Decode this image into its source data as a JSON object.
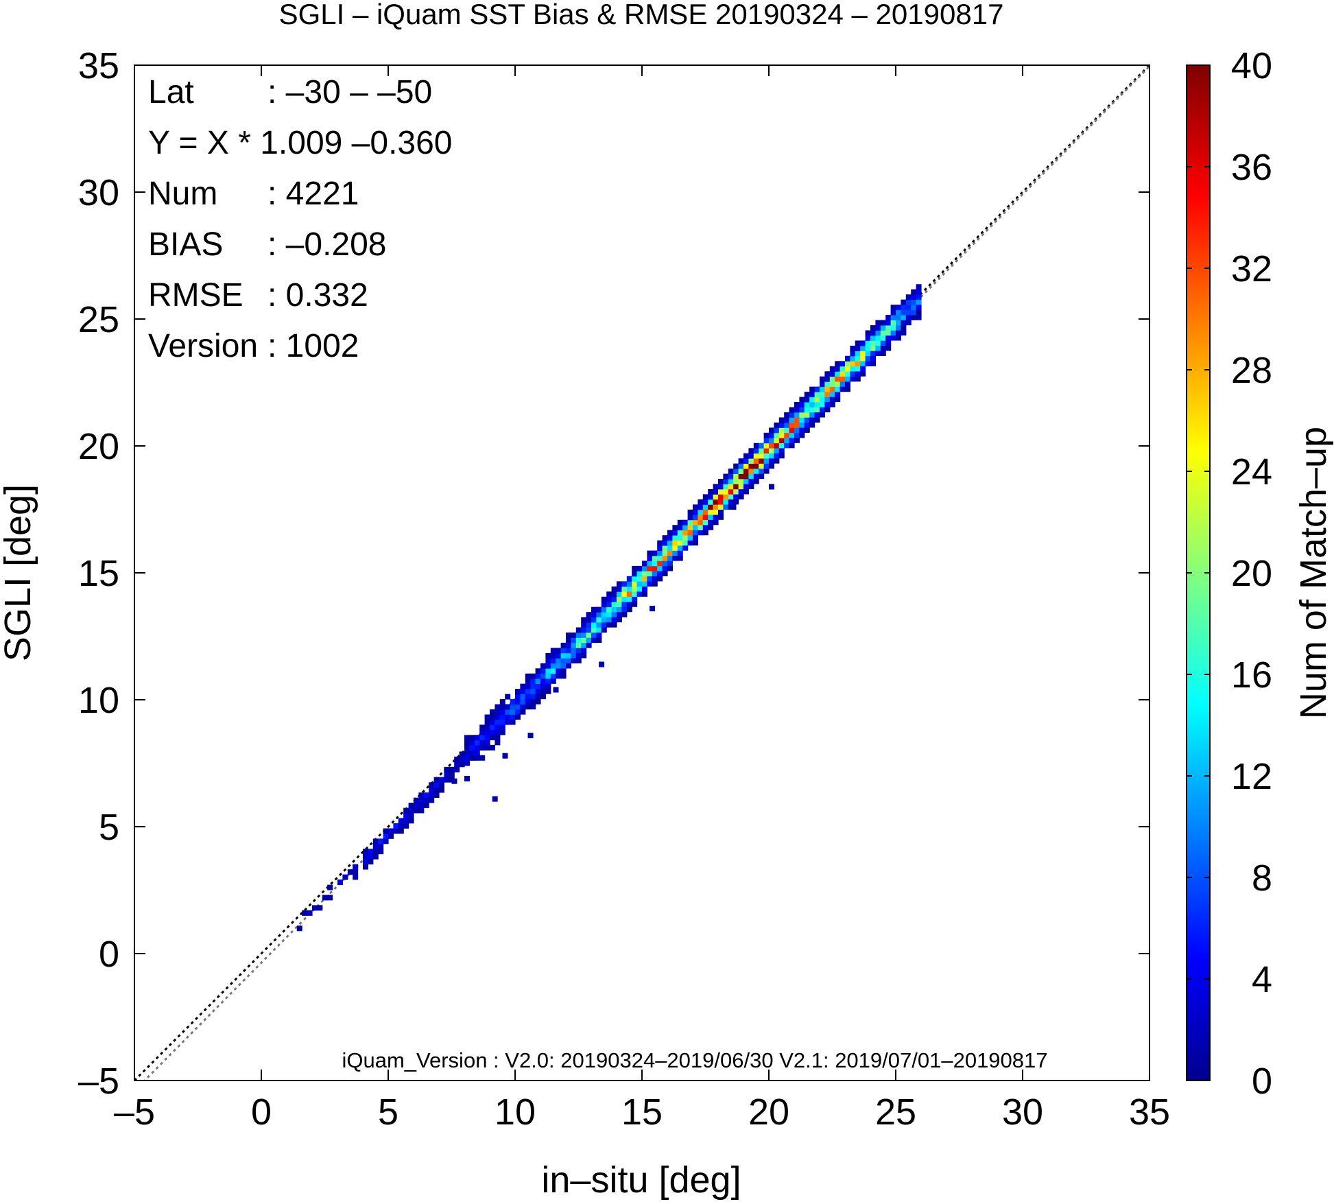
{
  "chart_data": {
    "type": "heatmap",
    "title": "SGLI – iQuam  SST Bias & RMSE 20190324 – 20190817",
    "xlabel": "in–situ [deg]",
    "ylabel": "SGLI [deg]",
    "xlim": [
      -5,
      35
    ],
    "ylim": [
      -5,
      35
    ],
    "x_ticks": [
      "–5",
      "0",
      "5",
      "10",
      "15",
      "20",
      "25",
      "30",
      "35"
    ],
    "y_ticks": [
      "–5",
      "0",
      "5",
      "10",
      "15",
      "20",
      "25",
      "30",
      "35"
    ],
    "x_tick_values": [
      -5,
      0,
      5,
      10,
      15,
      20,
      25,
      30,
      35
    ],
    "y_tick_values": [
      -5,
      0,
      5,
      10,
      15,
      20,
      25,
      30,
      35
    ],
    "grid": false,
    "reference_line": {
      "style": "dotted",
      "color": "#000000",
      "slope": 1,
      "intercept": 0
    },
    "regression_line": {
      "style": "dotted",
      "color": "#777777",
      "slope": 1.009,
      "intercept": -0.36
    },
    "stats": [
      {
        "label": "Lat",
        "value": ": –30 – –50"
      },
      {
        "label": "Y = X * 1.009 –0.360",
        "value": ""
      },
      {
        "label": "Num",
        "value": ": 4221"
      },
      {
        "label": "BIAS",
        "value": ": –0.208"
      },
      {
        "label": "RMSE",
        "value": ": 0.332"
      },
      {
        "label": "Version",
        "value": ": 1002"
      }
    ],
    "footnote": "iQuam_Version : V2.0: 20190324–2019/06/30 V2.1: 2019/07/01–20190817",
    "colorbar": {
      "label": "Num of Match–up",
      "range": [
        0,
        40
      ],
      "ticks": [
        "0",
        "4",
        "8",
        "12",
        "16",
        "20",
        "24",
        "28",
        "32",
        "36",
        "40"
      ],
      "tick_values": [
        0,
        4,
        8,
        12,
        16,
        20,
        24,
        28,
        32,
        36,
        40
      ]
    },
    "density_profile": [
      {
        "x": 1.5,
        "count": 2
      },
      {
        "x": 2.5,
        "count": 2
      },
      {
        "x": 3.5,
        "count": 3
      },
      {
        "x": 4.5,
        "count": 5
      },
      {
        "x": 5.5,
        "count": 5
      },
      {
        "x": 6.5,
        "count": 4
      },
      {
        "x": 7.5,
        "count": 3
      },
      {
        "x": 8.5,
        "count": 5
      },
      {
        "x": 9.5,
        "count": 8
      },
      {
        "x": 10.5,
        "count": 9
      },
      {
        "x": 11.5,
        "count": 12
      },
      {
        "x": 12.5,
        "count": 15
      },
      {
        "x": 13.5,
        "count": 18
      },
      {
        "x": 14.5,
        "count": 24
      },
      {
        "x": 15.5,
        "count": 26
      },
      {
        "x": 16.5,
        "count": 24
      },
      {
        "x": 17.5,
        "count": 32
      },
      {
        "x": 18.5,
        "count": 36
      },
      {
        "x": 19.5,
        "count": 34
      },
      {
        "x": 20.5,
        "count": 28
      },
      {
        "x": 21.5,
        "count": 24
      },
      {
        "x": 22.5,
        "count": 26
      },
      {
        "x": 23.5,
        "count": 22
      },
      {
        "x": 24.5,
        "count": 16
      },
      {
        "x": 25.5,
        "count": 10
      }
    ],
    "outliers": [
      {
        "x": 9.1,
        "y": 6.0
      },
      {
        "x": 9.5,
        "y": 7.7
      },
      {
        "x": 10.5,
        "y": 8.5
      },
      {
        "x": 13.3,
        "y": 11.3
      },
      {
        "x": 15.3,
        "y": 13.5
      },
      {
        "x": 18.5,
        "y": 17.5
      },
      {
        "x": 20.0,
        "y": 18.3
      },
      {
        "x": 11.5,
        "y": 10.3
      },
      {
        "x": 8.0,
        "y": 6.8
      },
      {
        "x": 7.5,
        "y": 6.7
      }
    ]
  }
}
